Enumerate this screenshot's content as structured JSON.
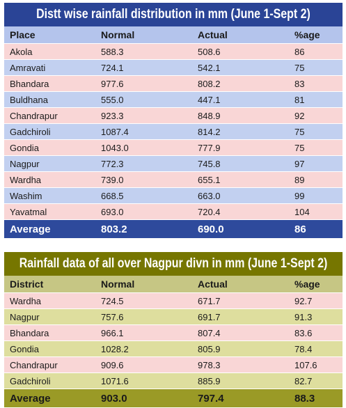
{
  "table1": {
    "title": "Distt wise rainfall distribution in mm (June 1-Sept 2)",
    "headers": [
      "Place",
      "Normal",
      "Actual",
      "%age"
    ],
    "rows": [
      [
        "Akola",
        "588.3",
        "508.6",
        "86"
      ],
      [
        "Amravati",
        "724.1",
        "542.1",
        "75"
      ],
      [
        "Bhandara",
        "977.6",
        "808.2",
        "83"
      ],
      [
        "Buldhana",
        "555.0",
        "447.1",
        "81"
      ],
      [
        "Chandrapur",
        "923.3",
        "848.9",
        "92"
      ],
      [
        "Gadchiroli",
        "1087.4",
        "814.2",
        "75"
      ],
      [
        "Gondia",
        "1043.0",
        "777.9",
        "75"
      ],
      [
        "Nagpur",
        "772.3",
        "745.8",
        "97"
      ],
      [
        "Wardha",
        "739.0",
        "655.1",
        "89"
      ],
      [
        "Washim",
        "668.5",
        "663.0",
        "99"
      ],
      [
        "Yavatmal",
        "693.0",
        "720.4",
        "104"
      ]
    ],
    "average": [
      "Average",
      "803.2",
      "690.0",
      "86"
    ]
  },
  "table2": {
    "title": "Rainfall data of all over Nagpur divn in mm (June 1-Sept 2)",
    "headers": [
      "District",
      "Normal",
      "Actual",
      "%age"
    ],
    "rows": [
      [
        "Wardha",
        "724.5",
        "671.7",
        "92.7"
      ],
      [
        "Nagpur",
        "757.6",
        "691.7",
        "91.3"
      ],
      [
        "Bhandara",
        "966.1",
        "807.4",
        "83.6"
      ],
      [
        "Gondia",
        "1028.2",
        "805.9",
        "78.4"
      ],
      [
        "Chandrapur",
        "909.6",
        "978.3",
        "107.6"
      ],
      [
        "Gadchiroli",
        "1071.6",
        "885.9",
        "82.7"
      ]
    ],
    "average": [
      "Average",
      "903.0",
      "797.4",
      "88.3"
    ]
  },
  "colors": {
    "table1_title_bg": "#2a4496",
    "table1_row_pink": "#f9d6d6",
    "table1_row_blue": "#c2d0f0",
    "table2_title_bg": "#767600",
    "table2_row_olive": "#dede9e",
    "table2_average_bg": "#9a9a26"
  }
}
